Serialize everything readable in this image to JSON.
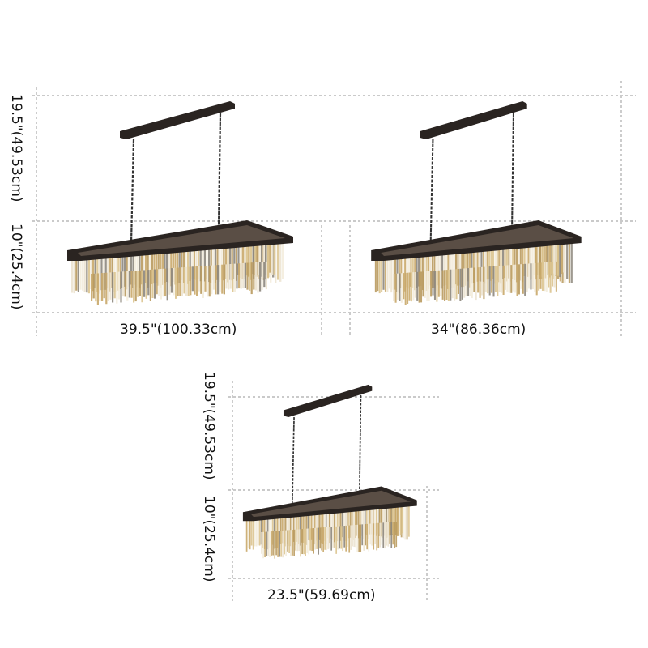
{
  "products": [
    {
      "width_label": "39.5\"(100.33cm)",
      "height_total_label": "19.5\"(49.53cm)",
      "height_body_label": "10\"(25.4cm)"
    },
    {
      "width_label": "34\"(86.36cm)"
    },
    {
      "width_label": "23.5\"(59.69cm)",
      "height_total_label": "19.5\"(49.53cm)",
      "height_body_label": "10\"(25.4cm)"
    }
  ],
  "colors": {
    "frame": "#2a2421",
    "crystal_warm": "#c9a86a",
    "crystal_light": "#ece3d0",
    "crystal_gray": "#8d877d",
    "guide": "#aaaaaa"
  }
}
